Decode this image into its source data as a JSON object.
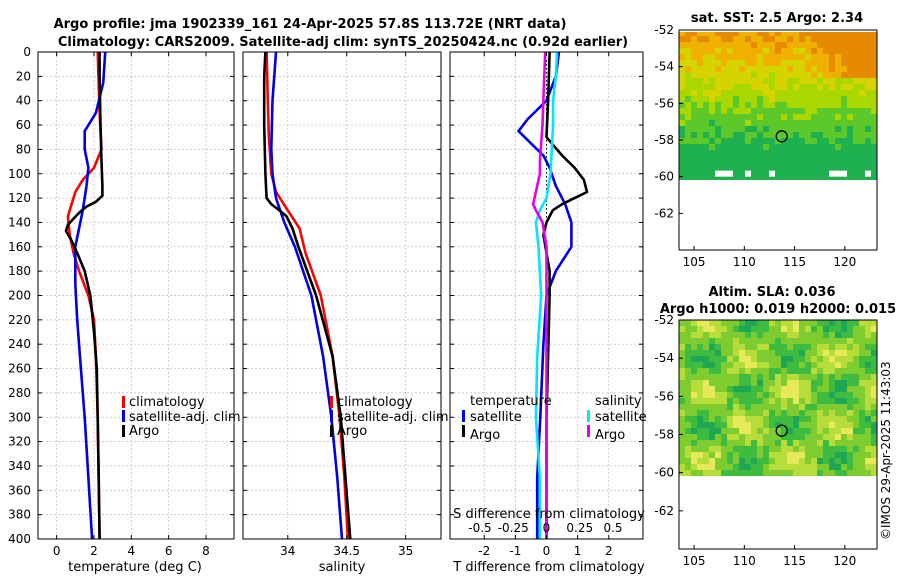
{
  "chart_data": {
    "title_line1": "Argo profile: jma 1902339_161 24-Apr-2025 57.8S 113.72E (NRT data)",
    "title_line2": "Climatology: CARS2009. Satellite-adj clim: synTS_20250424.nc (0.92d earlier)",
    "depth_ticks": [
      0,
      20,
      40,
      60,
      80,
      100,
      120,
      140,
      160,
      180,
      200,
      220,
      240,
      260,
      280,
      300,
      320,
      340,
      360,
      380,
      400
    ],
    "depth_range": [
      0,
      400
    ],
    "temperature_panel": {
      "type": "line",
      "xlabel": "temperature (deg C)",
      "xlim": [
        -1,
        9.5
      ],
      "xticks": [
        0,
        2,
        4,
        6,
        8
      ],
      "xtick_labels": [
        "0",
        "2",
        "4",
        "6",
        "8"
      ],
      "legend": [
        "climatology",
        "satellite-adj. clim",
        "Argo"
      ],
      "series": [
        {
          "name": "climatology",
          "color": "#ff0000",
          "depth": [
            0,
            50,
            80,
            95,
            105,
            115,
            125,
            135,
            150,
            165,
            180,
            200,
            220,
            250,
            300,
            350,
            400
          ],
          "values": [
            2.2,
            2.3,
            2.4,
            2.0,
            1.4,
            1.0,
            0.8,
            0.6,
            0.7,
            0.9,
            1.2,
            1.7,
            2.0,
            2.1,
            2.2,
            2.25,
            2.3
          ]
        },
        {
          "name": "satellite-adj. clim",
          "color": "#0000e6",
          "depth": [
            0,
            25,
            50,
            65,
            80,
            95,
            110,
            130,
            160,
            190,
            220,
            260,
            300,
            350,
            400
          ],
          "values": [
            2.6,
            2.5,
            2.1,
            1.5,
            1.5,
            1.7,
            1.6,
            1.4,
            1.0,
            1.0,
            1.1,
            1.3,
            1.5,
            1.7,
            1.9
          ]
        },
        {
          "name": "Argo",
          "color": "#000000",
          "depth": [
            0,
            20,
            60,
            90,
            110,
            118,
            123,
            127,
            132,
            137,
            142,
            147,
            155,
            165,
            180,
            200,
            230,
            260,
            300,
            350,
            400
          ],
          "values": [
            2.3,
            2.3,
            2.35,
            2.4,
            2.45,
            2.45,
            2.1,
            1.6,
            1.2,
            0.9,
            0.6,
            0.5,
            0.8,
            1.1,
            1.5,
            1.8,
            2.0,
            2.15,
            2.2,
            2.25,
            2.3
          ]
        }
      ]
    },
    "salinity_panel": {
      "type": "line",
      "xlabel": "salinity",
      "xlim": [
        33.62,
        35.3
      ],
      "xticks": [
        34,
        34.5,
        35
      ],
      "xtick_labels": [
        "34",
        "34.5",
        "35"
      ],
      "legend": [
        "climatology",
        "satellite-adj. clim",
        "Argo"
      ],
      "series": [
        {
          "name": "climatology",
          "color": "#ff0000",
          "depth": [
            0,
            40,
            70,
            100,
            115,
            130,
            145,
            165,
            200,
            250,
            300,
            350,
            400
          ],
          "values": [
            33.82,
            33.83,
            33.84,
            33.86,
            33.9,
            34.0,
            34.1,
            34.15,
            34.28,
            34.38,
            34.44,
            34.48,
            34.51
          ]
        },
        {
          "name": "satellite-adj. clim",
          "color": "#0000e6",
          "depth": [
            0,
            40,
            80,
            100,
            120,
            140,
            160,
            200,
            250,
            300,
            350,
            400
          ],
          "values": [
            33.9,
            33.87,
            33.86,
            33.87,
            33.9,
            33.97,
            34.06,
            34.2,
            34.3,
            34.37,
            34.42,
            34.46
          ]
        },
        {
          "name": "Argo",
          "color": "#000000",
          "depth": [
            0,
            20,
            60,
            100,
            120,
            125,
            130,
            135,
            145,
            160,
            200,
            250,
            300,
            350,
            400
          ],
          "values": [
            33.81,
            33.8,
            33.8,
            33.81,
            33.82,
            33.86,
            33.93,
            33.99,
            34.04,
            34.09,
            34.24,
            34.38,
            34.45,
            34.49,
            34.53
          ]
        }
      ]
    },
    "difference_panel": {
      "type": "line",
      "xlabel": "T difference from climatology",
      "xlim": [
        -3.1,
        3.1
      ],
      "xticks": [
        -2,
        -1,
        0,
        1,
        2
      ],
      "xtick_labels": [
        "-2",
        "-1",
        "0",
        "1",
        "2"
      ],
      "top_axis_label": "S difference from climatology",
      "top_ticks": [
        -0.5,
        -0.25,
        0,
        0.25,
        0.5
      ],
      "top_tick_labels": [
        "-0.5",
        "-0.25",
        "0",
        "0.25",
        "0.5"
      ],
      "legend_temperature_title": "temperature",
      "legend_salinity_title": "salinity",
      "legend_temperature": [
        "satellite",
        "Argo"
      ],
      "legend_salinity": [
        "satellite",
        "Argo"
      ],
      "series": [
        {
          "name": "temperature satellite",
          "color": "#0000e6",
          "depth": [
            0,
            20,
            40,
            55,
            65,
            75,
            85,
            95,
            110,
            125,
            140,
            160,
            180,
            200,
            240,
            300,
            350,
            400
          ],
          "values": [
            0.4,
            0.3,
            0.0,
            -0.6,
            -0.9,
            -0.5,
            -0.1,
            0.1,
            0.3,
            0.6,
            0.8,
            0.8,
            0.3,
            0.0,
            -0.1,
            -0.2,
            -0.3,
            -0.3
          ]
        },
        {
          "name": "temperature Argo",
          "color": "#000000",
          "depth": [
            0,
            40,
            70,
            85,
            95,
            105,
            115,
            120,
            125,
            130,
            140,
            150,
            165,
            180,
            200,
            250,
            300,
            350,
            400
          ],
          "values": [
            0.1,
            0.05,
            0.0,
            0.5,
            0.9,
            1.2,
            1.3,
            0.9,
            0.5,
            0.2,
            0.0,
            -0.1,
            0.0,
            0.1,
            0.1,
            0.05,
            0.0,
            0.0,
            0.0
          ]
        },
        {
          "name": "salinity satellite",
          "color": "#00e6ff",
          "depth": [
            0,
            20,
            40,
            60,
            80,
            100,
            120,
            130,
            140,
            160,
            200,
            250,
            300,
            350,
            400
          ],
          "values": [
            0.08,
            0.07,
            0.05,
            0.05,
            0.04,
            0.03,
            0.0,
            -0.05,
            -0.08,
            -0.06,
            -0.04,
            -0.07,
            -0.08,
            -0.05,
            -0.05
          ]
        },
        {
          "name": "salinity Argo",
          "color": "#e600e6",
          "depth": [
            0,
            30,
            60,
            90,
            100,
            110,
            120,
            125,
            130,
            140,
            160,
            200,
            250,
            300,
            350,
            400
          ],
          "values": [
            -0.01,
            -0.02,
            -0.03,
            -0.05,
            -0.05,
            -0.07,
            -0.09,
            -0.1,
            -0.08,
            -0.03,
            0.0,
            0.0,
            0.0,
            0.0,
            0.0,
            0.0
          ]
        }
      ]
    },
    "sst_map": {
      "type": "heatmap",
      "title": "sat. SST: 2.5 Argo: 2.34",
      "lon_ticks": [
        105,
        110,
        115,
        120
      ],
      "lat_ticks": [
        -52,
        -54,
        -56,
        -58,
        -60,
        -62
      ],
      "lon_range": [
        103.5,
        123.2
      ],
      "lat_range": [
        -52,
        -64
      ],
      "argo_position": {
        "lon": 113.72,
        "lat": -57.8
      }
    },
    "sla_map": {
      "type": "heatmap",
      "title_line1": "Altim. SLA: 0.036",
      "title_line2": "Argo h1000: 0.019 h2000: 0.015",
      "lon_ticks": [
        105,
        110,
        115,
        120
      ],
      "lat_ticks": [
        -52,
        -54,
        -56,
        -58,
        -60,
        -62
      ],
      "lon_range": [
        103.5,
        123.2
      ],
      "lat_range": [
        -52,
        -64
      ],
      "argo_position": {
        "lon": 113.72,
        "lat": -57.8
      }
    },
    "credit": "©IMOS 29-Apr-2025 11:43:03"
  }
}
